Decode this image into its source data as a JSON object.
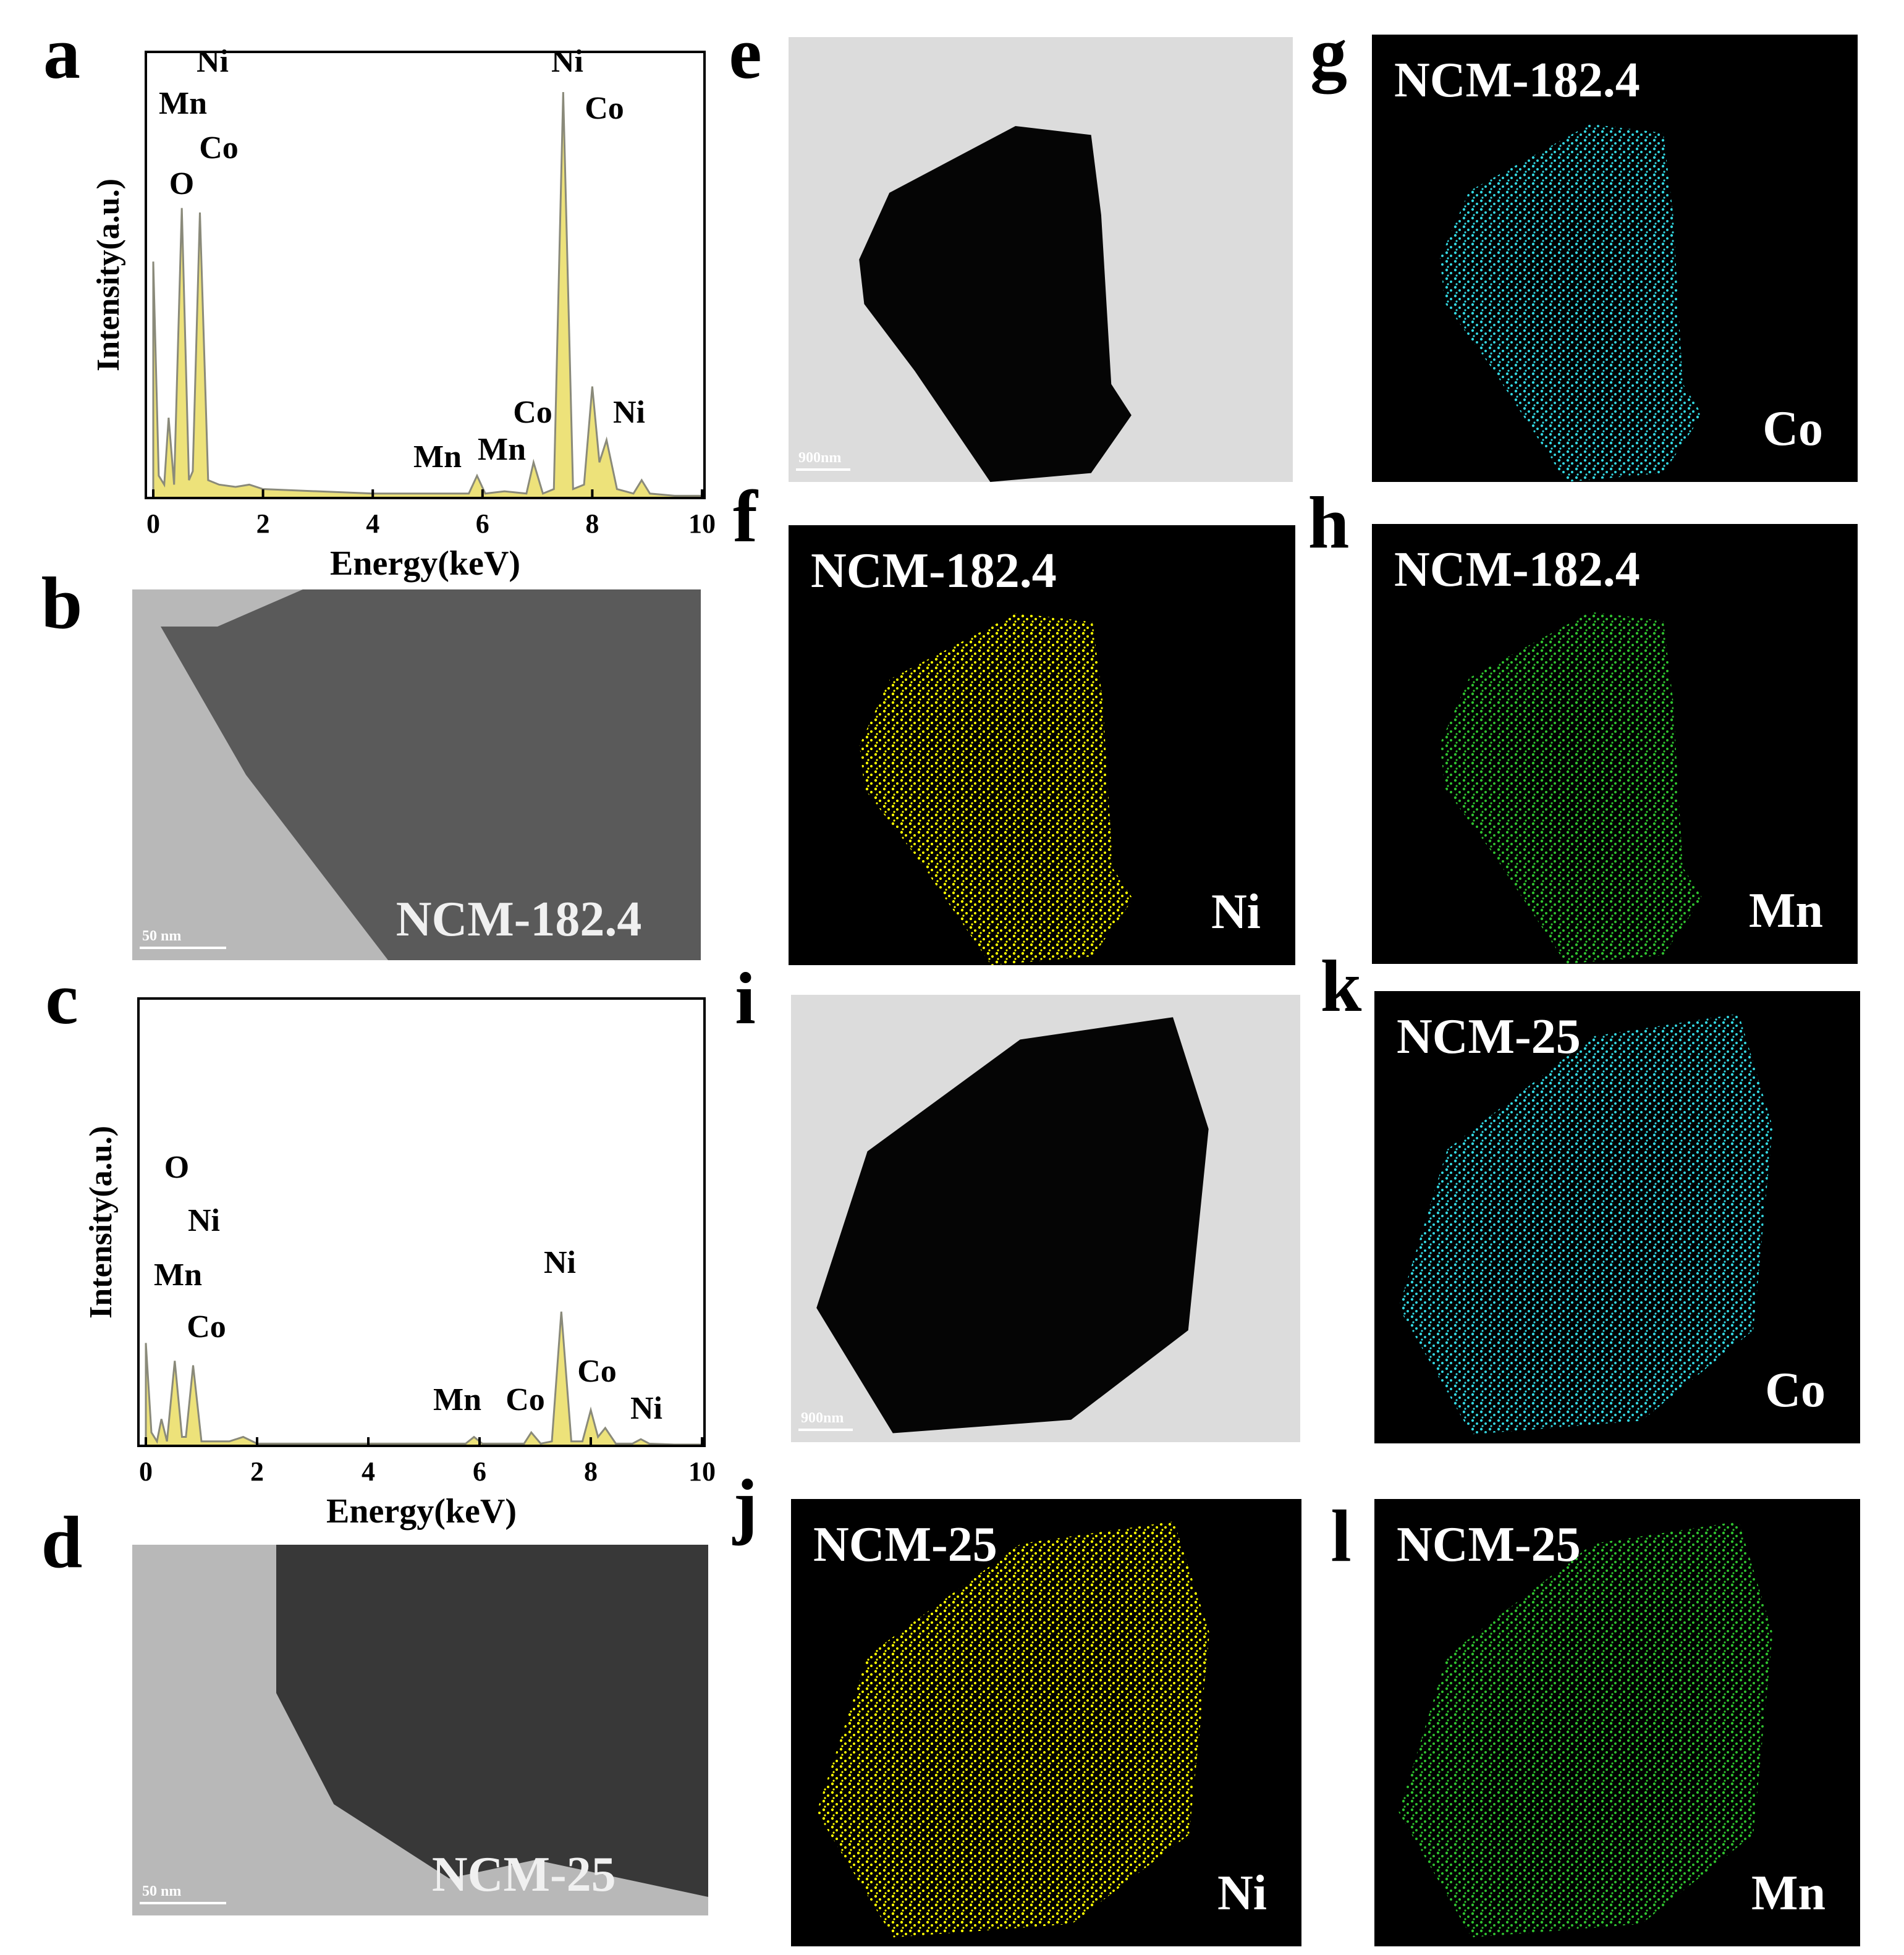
{
  "chart_data": [
    {
      "type": "area",
      "x_label": "Energy(keV)",
      "y_label": "Intensity(a.u.)",
      "color": "#ede27a",
      "xlim": [
        0,
        10
      ],
      "ylim": [
        0,
        100
      ],
      "xticks": [
        0,
        2,
        4,
        6,
        8,
        10
      ],
      "x": [
        0,
        0.1,
        0.2,
        0.28,
        0.38,
        0.52,
        0.65,
        0.72,
        0.85,
        1.0,
        1.2,
        1.5,
        1.75,
        2,
        3,
        4,
        5,
        5.75,
        5.9,
        6.05,
        6.4,
        6.8,
        6.93,
        7.1,
        7.3,
        7.47,
        7.65,
        7.85,
        8.0,
        8.13,
        8.26,
        8.45,
        8.75,
        8.9,
        9.05,
        9.5,
        10
      ],
      "values": [
        53,
        5,
        3,
        18,
        3,
        65,
        4,
        6,
        64,
        4,
        3,
        2.5,
        3,
        2,
        1.5,
        1,
        1,
        1,
        5,
        1,
        1.5,
        1,
        8,
        1,
        2,
        91,
        2,
        3,
        25,
        8,
        13,
        2,
        1,
        4,
        1,
        0.5,
        0.5
      ],
      "annotations": [
        "Ni",
        "Mn",
        "Co",
        "O",
        "Ni",
        "Co",
        "Co",
        "Ni",
        "Mn",
        "Mn"
      ]
    },
    {
      "type": "area",
      "x_label": "Energy(keV)",
      "y_label": "Intensity(a.u.)",
      "color": "#ede27a",
      "xlim": [
        0,
        10
      ],
      "ylim": [
        0,
        100
      ],
      "xticks": [
        0,
        2,
        4,
        6,
        8,
        10
      ],
      "x": [
        0,
        0.1,
        0.2,
        0.28,
        0.38,
        0.52,
        0.65,
        0.72,
        0.85,
        1.0,
        1.2,
        1.5,
        1.75,
        2,
        3,
        4,
        5,
        5.75,
        5.9,
        6.05,
        6.4,
        6.8,
        6.93,
        7.1,
        7.3,
        7.47,
        7.65,
        7.85,
        8.0,
        8.13,
        8.26,
        8.45,
        8.75,
        8.9,
        9.05,
        9.5,
        10
      ],
      "values": [
        23,
        3,
        1,
        6,
        1,
        19,
        2,
        2,
        18,
        1,
        1,
        1,
        2,
        0.5,
        0.5,
        0.5,
        0.5,
        0.5,
        2,
        0.5,
        0.5,
        0.5,
        3,
        0.5,
        1,
        30,
        1,
        1,
        8,
        2,
        4,
        0.5,
        0.5,
        1.5,
        0.5,
        0.3,
        0.3
      ],
      "annotations": [
        "O",
        "Ni",
        "Mn",
        "Co",
        "Ni",
        "Co",
        "Mn",
        "Co",
        "Ni"
      ]
    }
  ],
  "panel_letters": [
    "a",
    "b",
    "c",
    "d",
    "e",
    "f",
    "g",
    "h",
    "i",
    "j",
    "k",
    "l"
  ],
  "images": [
    {
      "sample": "NCM-182.4",
      "scale_bar": "50 nm"
    },
    {
      "sample": "NCM-25",
      "scale_bar": "50 nm"
    },
    {
      "scale_bar": "900nm"
    },
    {
      "sample": "NCM-182.4",
      "element": "Ni",
      "color": "#ffff00"
    },
    {
      "sample": "NCM-182.4",
      "element": "Co",
      "color": "#33d6e0"
    },
    {
      "sample": "NCM-182.4",
      "element": "Mn",
      "color": "#2fc02f"
    },
    {
      "scale_bar": "900nm"
    },
    {
      "sample": "NCM-25",
      "element": "Ni",
      "color": "#ffff00"
    },
    {
      "sample": "NCM-25",
      "element": "Co",
      "color": "#33d6e0"
    },
    {
      "sample": "NCM-25",
      "element": "Mn",
      "color": "#2fc02f"
    }
  ]
}
